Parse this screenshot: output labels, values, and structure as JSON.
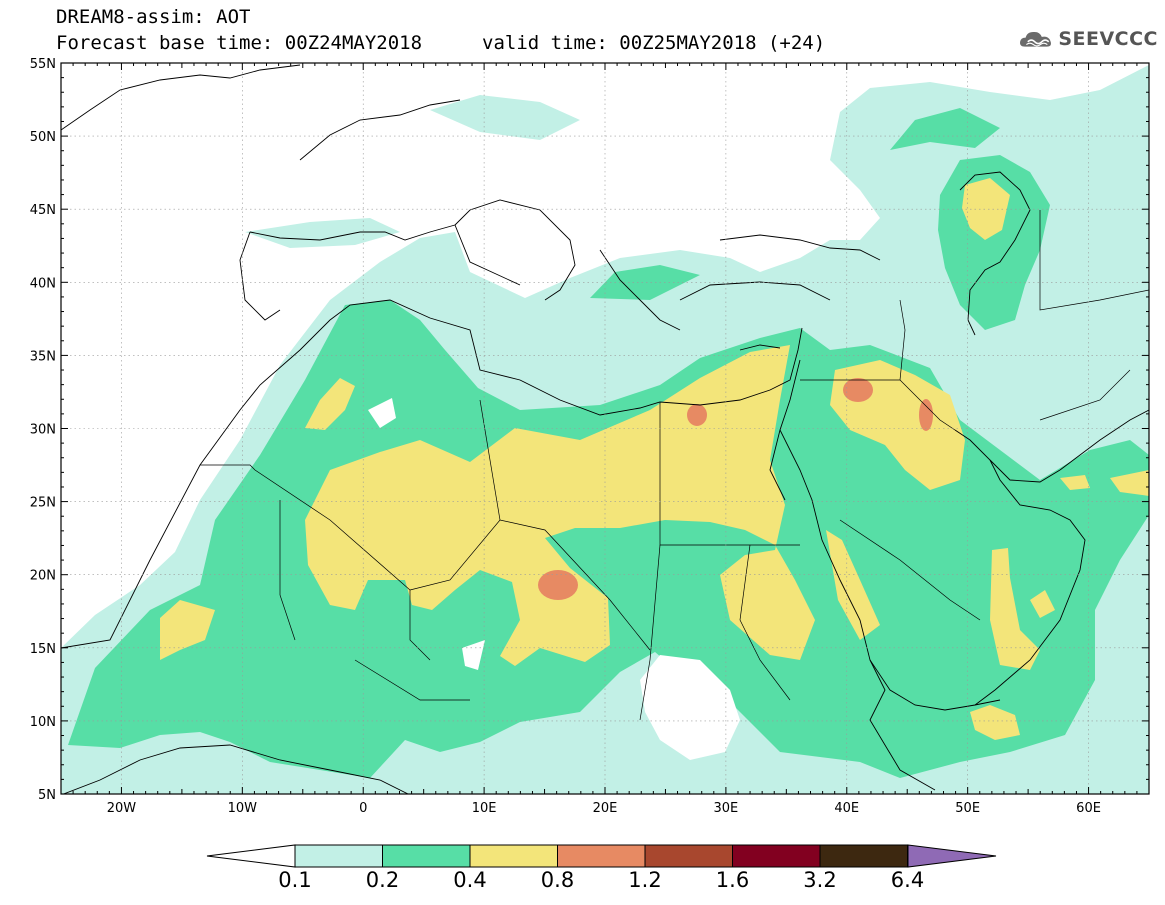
{
  "header": {
    "title": "DREAM8-assim: AOT",
    "base_time": "Forecast base time: 00Z24MAY2018",
    "valid_time": "valid time: 00Z25MAY2018 (+24)"
  },
  "logo": {
    "text": "SEEVCCC",
    "icon": "cloud-icon"
  },
  "map": {
    "projection": "lat-lon",
    "lon_range": [
      -25,
      65
    ],
    "lat_range": [
      5,
      55
    ],
    "lat_labels": [
      "55N",
      "50N",
      "45N",
      "40N",
      "35N",
      "30N",
      "25N",
      "20N",
      "15N",
      "10N",
      "5N"
    ],
    "lon_labels": [
      "20W",
      "10W",
      "0",
      "10E",
      "20E",
      "30E",
      "40E",
      "50E",
      "60E"
    ]
  },
  "colorbar": {
    "labels": [
      "0.1",
      "0.2",
      "0.4",
      "0.8",
      "1.2",
      "1.6",
      "3.2",
      "6.4"
    ],
    "colors": [
      "#c2f0e6",
      "#57dea6",
      "#f3e57a",
      "#e78a63",
      "#a8472e",
      "#820020",
      "#3d2810",
      "#8f6ab5"
    ],
    "under_color": "#ffffff"
  }
}
